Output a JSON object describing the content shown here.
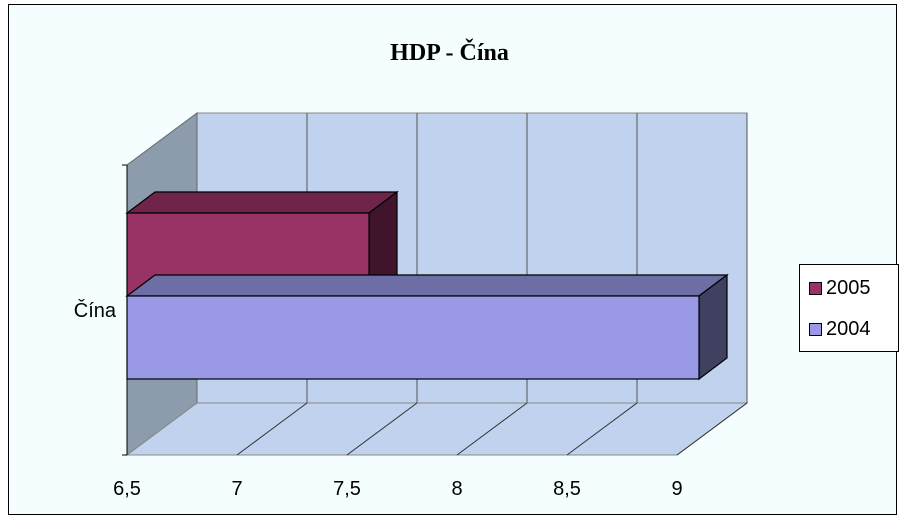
{
  "chart_data": {
    "type": "bar",
    "orientation": "horizontal",
    "three_d": true,
    "title": "HDP - Čína",
    "categories": [
      "Čína"
    ],
    "series": [
      {
        "name": "2005",
        "values": [
          7.6
        ],
        "color": "#993366"
      },
      {
        "name": "2004",
        "values": [
          9.1
        ],
        "color": "#9999e6"
      }
    ],
    "x_ticks": [
      "6,5",
      "7",
      "7,5",
      "8",
      "8,5",
      "9"
    ],
    "xlim": [
      6.5,
      9.0
    ],
    "grid": true,
    "legend_position": "right",
    "colors": {
      "chart_area": "#f4fefe",
      "plot_back": "#c0d2ed",
      "plot_left": "#8d9cac",
      "series_2005": "#993366",
      "series_2004": "#9999e6"
    }
  }
}
